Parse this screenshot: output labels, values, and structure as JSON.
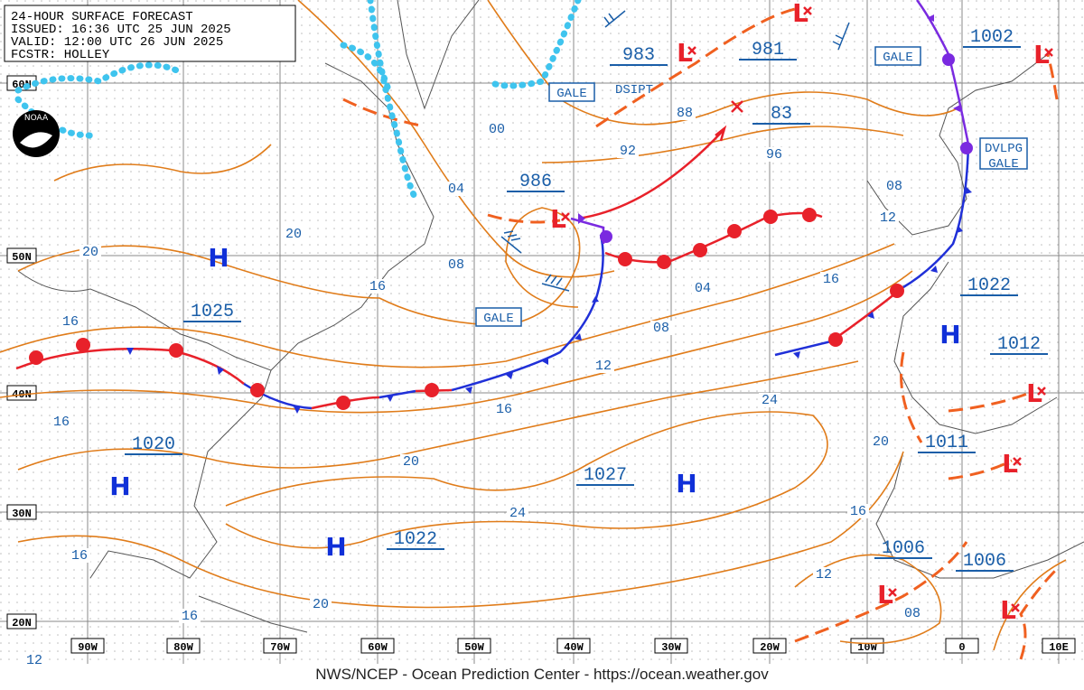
{
  "header": {
    "lines": [
      "24-HOUR SURFACE FORECAST",
      "ISSUED: 16:36 UTC 25 JUN 2025",
      "VALID:  12:00 UTC 26 JUN 2025",
      "FCSTR:  HOLLEY"
    ]
  },
  "logo": "NOAA",
  "latitude_labels": [
    "60N",
    "50N",
    "40N",
    "30N",
    "20N"
  ],
  "longitude_labels": [
    "90W",
    "80W",
    "70W",
    "60W",
    "50W",
    "40W",
    "30W",
    "20W",
    "10W",
    "0",
    "10E"
  ],
  "pressure_labels": [
    "1025",
    "1020",
    "1022",
    "1027",
    "983",
    "981",
    "986",
    "83",
    "1002",
    "1022",
    "1012",
    "1011",
    "1006",
    "1006"
  ],
  "high_centers": [
    "H",
    "H",
    "H",
    "H",
    "H"
  ],
  "low_centers": [
    "L",
    "L",
    "L",
    "L",
    "L",
    "L",
    "L",
    "L"
  ],
  "isobar_labels": [
    "00",
    "04",
    "08",
    "16",
    "20",
    "20",
    "16",
    "16",
    "16",
    "16",
    "12",
    "20",
    "20",
    "24",
    "16",
    "12",
    "08",
    "04",
    "92",
    "88",
    "96",
    "08",
    "12",
    "16",
    "24",
    "20",
    "16",
    "12",
    "08"
  ],
  "warnings": [
    "GALE",
    "GALE",
    "GALE",
    "DVLPG",
    "GALE"
  ],
  "notes": [
    "DSIPT"
  ],
  "footer": "NWS/NCEP - Ocean Prediction Center - https://ocean.weather.gov"
}
